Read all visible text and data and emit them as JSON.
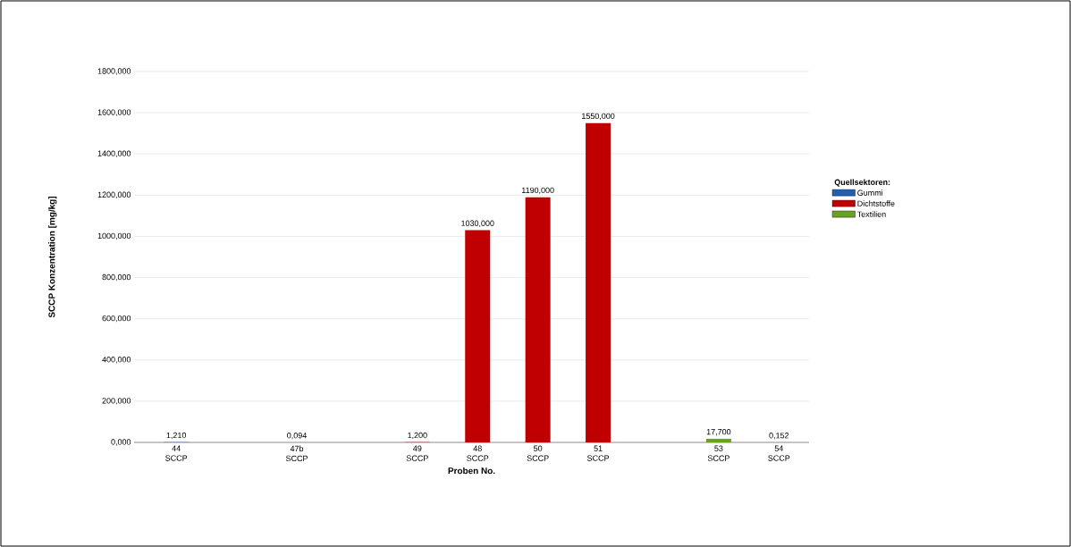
{
  "chart_data": {
    "type": "bar",
    "xlabel": "Proben No.",
    "ylabel": "SCCP Konzentration [mg/kg]",
    "legend_title": "Quellsektoren:",
    "categories": [
      "44 SCCP",
      null,
      "47b SCCP",
      null,
      "49 SCCP",
      "48 SCCP",
      "50 SCCP",
      "51 SCCP",
      null,
      "53 SCCP",
      "54 SCCP"
    ],
    "series": [
      {
        "name": "Gummi",
        "color": "#1f5fb4",
        "values": [
          1.21,
          null,
          0.094,
          null,
          null,
          null,
          null,
          null,
          null,
          null,
          null
        ],
        "value_labels": [
          "1,210",
          null,
          "0,094",
          null,
          null,
          null,
          null,
          null,
          null,
          null,
          null
        ]
      },
      {
        "name": "Dichtstoffe",
        "color": "#c00000",
        "values": [
          null,
          null,
          null,
          null,
          1.2,
          1030,
          1190,
          1550,
          null,
          null,
          null
        ],
        "value_labels": [
          null,
          null,
          null,
          null,
          "1,200",
          "1030,000",
          "1190,000",
          "1550,000",
          null,
          null,
          null
        ]
      },
      {
        "name": "Textilien",
        "color": "#6aa121",
        "values": [
          null,
          null,
          null,
          null,
          null,
          null,
          null,
          null,
          null,
          17.7,
          0.152
        ],
        "value_labels": [
          null,
          null,
          null,
          null,
          null,
          null,
          null,
          null,
          null,
          "17,700",
          "0,152"
        ]
      }
    ],
    "ylim": [
      0,
      1800
    ],
    "yticks": [
      {
        "value": 0,
        "label": "0,000"
      },
      {
        "value": 200,
        "label": "200,000"
      },
      {
        "value": 400,
        "label": "400,000"
      },
      {
        "value": 600,
        "label": "600,000"
      },
      {
        "value": 800,
        "label": "800,000"
      },
      {
        "value": 1000,
        "label": "1000,000"
      },
      {
        "value": 1200,
        "label": "1200,000"
      },
      {
        "value": 1400,
        "label": "1400,000"
      },
      {
        "value": 1600,
        "label": "1600,000"
      },
      {
        "value": 1800,
        "label": "1800,000"
      }
    ],
    "grid": "y",
    "legend": "right"
  }
}
